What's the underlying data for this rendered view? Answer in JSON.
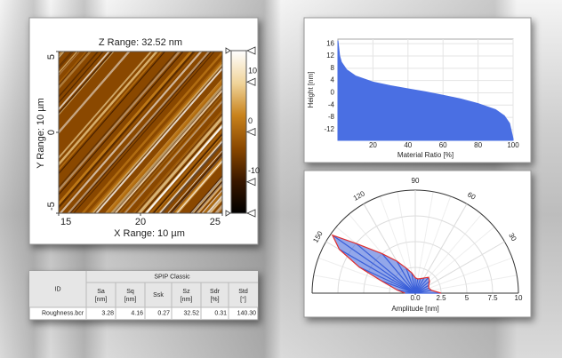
{
  "chart_data": [
    {
      "type": "image",
      "title": "Z Range: 32.52 nm",
      "xlabel": "X Range: 10 µm",
      "ylabel": "Y Range: 10 µm",
      "xlim": [
        15,
        25
      ],
      "xticks": [
        15,
        20,
        25
      ],
      "ylim": [
        -5,
        5
      ],
      "yticks": [
        5,
        0,
        -5
      ],
      "clim": [
        -16.26,
        16.26
      ],
      "cticks": [
        10,
        0,
        -10
      ],
      "colormap": [
        "#000000",
        "#3a1800",
        "#8a4800",
        "#c8821c",
        "#f0d49a",
        "#ffffff"
      ]
    },
    {
      "type": "area",
      "xlabel": "Material Ratio [%]",
      "ylabel": "Height [nm]",
      "x": [
        0,
        1,
        2,
        5,
        10,
        20,
        30,
        40,
        50,
        60,
        70,
        80,
        90,
        95,
        98,
        100
      ],
      "series": [
        {
          "color": "#4a6fe3",
          "values": [
            17,
            12,
            10,
            7.5,
            5.5,
            3.5,
            2.3,
            1.3,
            0.3,
            -0.8,
            -2,
            -3.5,
            -5.5,
            -7.5,
            -10,
            -15
          ]
        }
      ],
      "xlim": [
        0,
        100
      ],
      "ylim": [
        -15.5,
        17.5
      ],
      "xticks": [
        20,
        40,
        60,
        80,
        100
      ],
      "yticks": [
        16,
        12,
        8,
        4,
        0,
        -4,
        -8,
        -12
      ],
      "grid": true
    },
    {
      "type": "polar",
      "xlabel": "Amplitude [nm]",
      "theta": [
        0,
        10,
        20,
        30,
        40,
        50,
        60,
        70,
        80,
        90,
        100,
        110,
        120,
        130,
        140,
        145,
        150,
        155,
        160,
        170,
        180
      ],
      "series": [
        {
          "color": "#3a5fd9",
          "edgecolor": "#e03030",
          "values": [
            2.5,
            1.6,
            1.4,
            1.5,
            1.8,
            2,
            1.7,
            1.5,
            1.4,
            1.5,
            2,
            2.6,
            3.6,
            5,
            7.5,
            9.8,
            8.5,
            6,
            3.5,
            1.8,
            1
          ]
        }
      ],
      "rlim": [
        0,
        10
      ],
      "rticks": [
        {
          "value": 0,
          "label": "0.0"
        },
        2.5,
        5,
        7.5,
        10
      ],
      "thetaticks": [
        30,
        60,
        90,
        120,
        150
      ]
    }
  ],
  "table": {
    "title": "SPIP Classic",
    "columns": [
      {
        "name": "ID"
      },
      {
        "name": "Sa",
        "unit": "[nm]"
      },
      {
        "name": "Sq",
        "unit": "[nm]"
      },
      {
        "name": "Ssk"
      },
      {
        "name": "Sz",
        "unit": "[nm]"
      },
      {
        "name": "Sdr",
        "unit": "[%]"
      },
      {
        "name": "Std",
        "unit": "[°]"
      }
    ],
    "rows": [
      [
        "Roughness.bcr",
        "3.28",
        "4.16",
        "0.27",
        "32.52",
        "0.31",
        "140.30"
      ]
    ]
  }
}
